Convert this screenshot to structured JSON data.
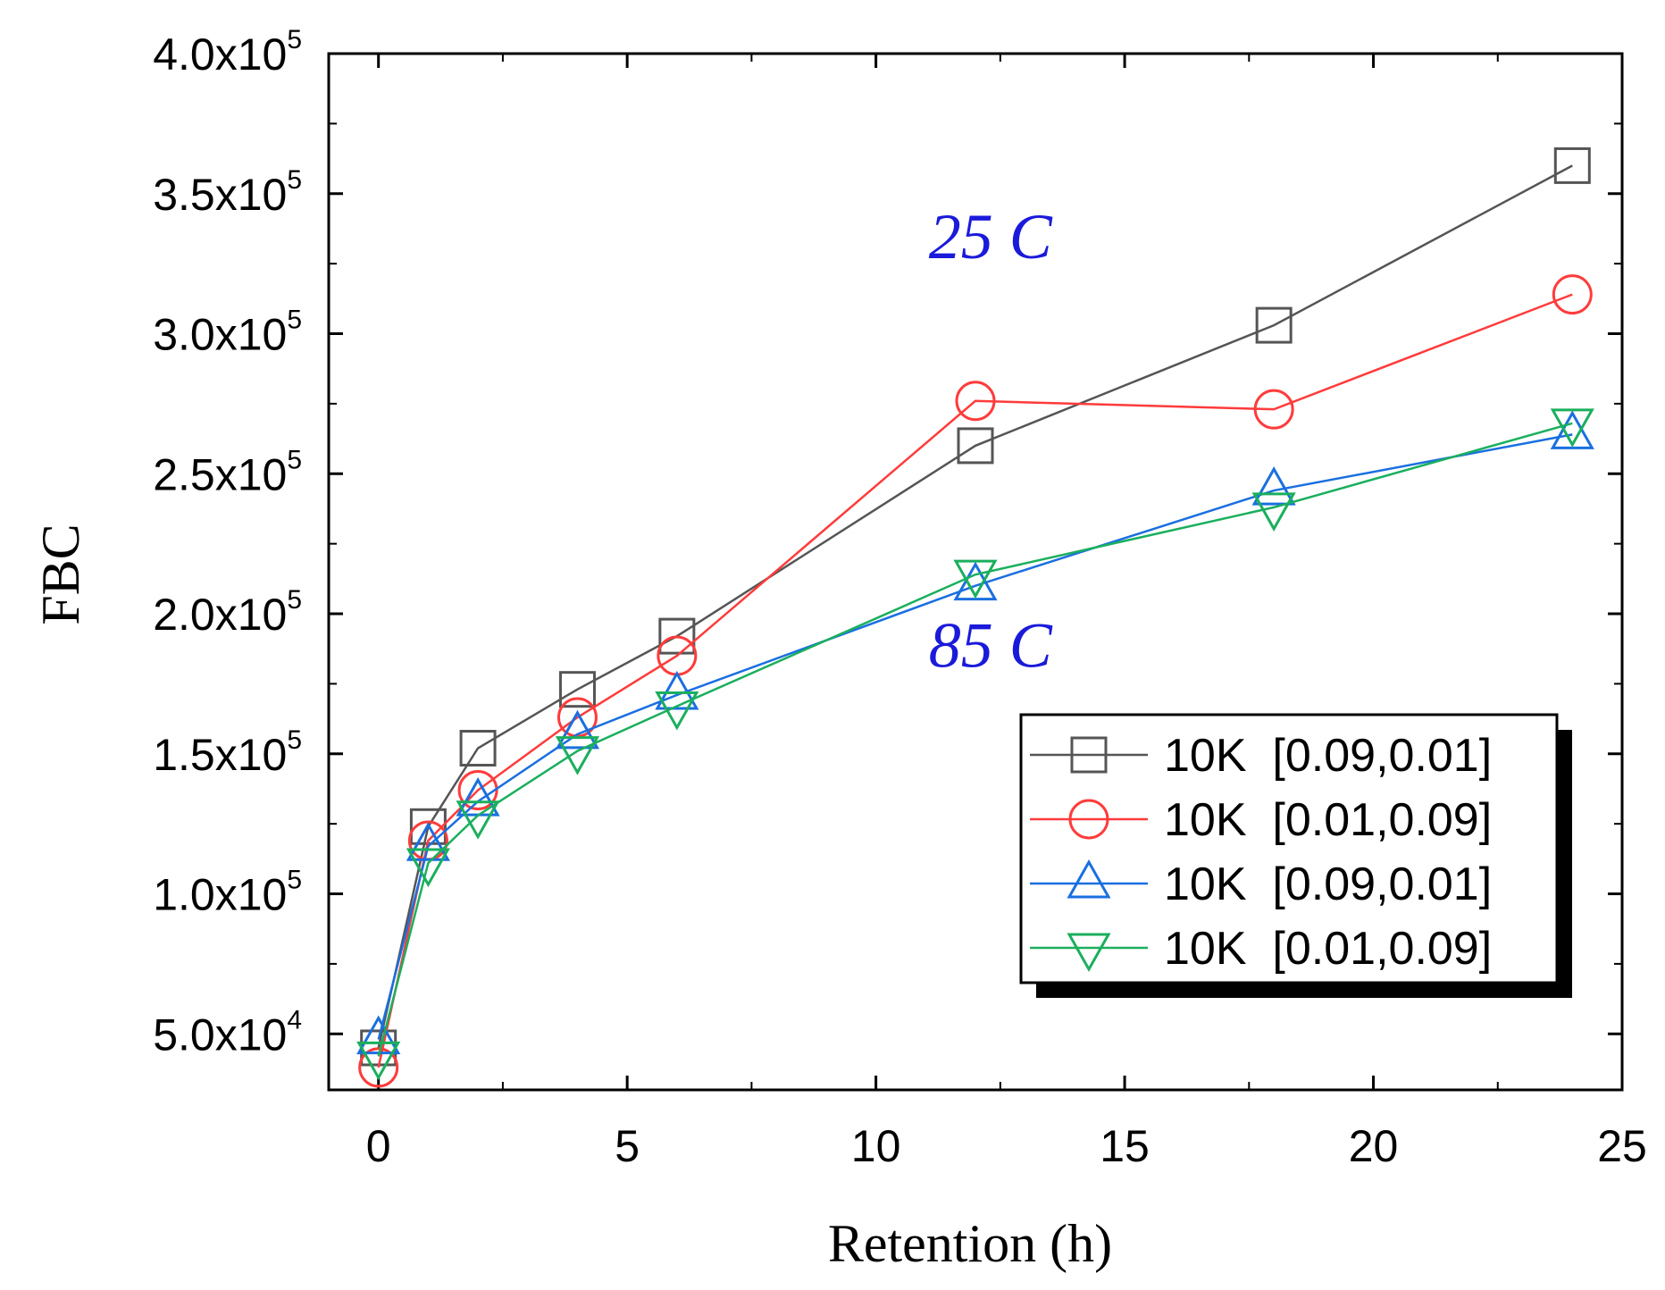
{
  "chart_data": {
    "type": "line",
    "title": "",
    "xlabel": "Retention (h)",
    "ylabel": "FBC",
    "xlim": [
      -1,
      25
    ],
    "ylim": [
      30000,
      400000
    ],
    "x_ticks": [
      0,
      5,
      10,
      15,
      20,
      25
    ],
    "x_tick_labels": [
      "0",
      "5",
      "10",
      "15",
      "20",
      "25"
    ],
    "y_ticks": [
      {
        "value": 50000,
        "mantissa": "5.0x10",
        "exponent": "4"
      },
      {
        "value": 100000,
        "mantissa": "1.0x10",
        "exponent": "5"
      },
      {
        "value": 150000,
        "mantissa": "1.5x10",
        "exponent": "5"
      },
      {
        "value": 200000,
        "mantissa": "2.0x10",
        "exponent": "5"
      },
      {
        "value": 250000,
        "mantissa": "2.5x10",
        "exponent": "5"
      },
      {
        "value": 300000,
        "mantissa": "3.0x10",
        "exponent": "5"
      },
      {
        "value": 350000,
        "mantissa": "3.5x10",
        "exponent": "5"
      },
      {
        "value": 400000,
        "mantissa": "4.0x10",
        "exponent": "5"
      }
    ],
    "x": [
      0,
      1,
      2,
      4,
      6,
      12,
      18,
      24
    ],
    "series": [
      {
        "name": "10K  [0.09,0.01]",
        "color": "#555555",
        "marker": "square",
        "values": [
          45000,
          124000,
          152000,
          173000,
          192000,
          260000,
          303000,
          360000
        ]
      },
      {
        "name": "10K  [0.01,0.09]",
        "color": "#ff3b3b",
        "marker": "circle",
        "values": [
          38000,
          119000,
          137000,
          163000,
          185000,
          276000,
          273000,
          314000
        ]
      },
      {
        "name": "10K  [0.09,0.01]",
        "color": "#1a6fe0",
        "marker": "triangle-up",
        "values": [
          48000,
          117000,
          133000,
          157000,
          171000,
          210000,
          244000,
          264000
        ]
      },
      {
        "name": "10K  [0.01,0.09]",
        "color": "#1aaf5d",
        "marker": "triangle-down",
        "values": [
          42000,
          111000,
          128000,
          151000,
          167000,
          214000,
          238000,
          268000
        ]
      }
    ],
    "annotations": [
      {
        "text": "25 C",
        "x": 12.3,
        "y": 327000,
        "color": "#1a1adb"
      },
      {
        "text": "85 C",
        "x": 12.3,
        "y": 181000,
        "color": "#1a1adb"
      }
    ],
    "legend_position": "bottom-right"
  }
}
